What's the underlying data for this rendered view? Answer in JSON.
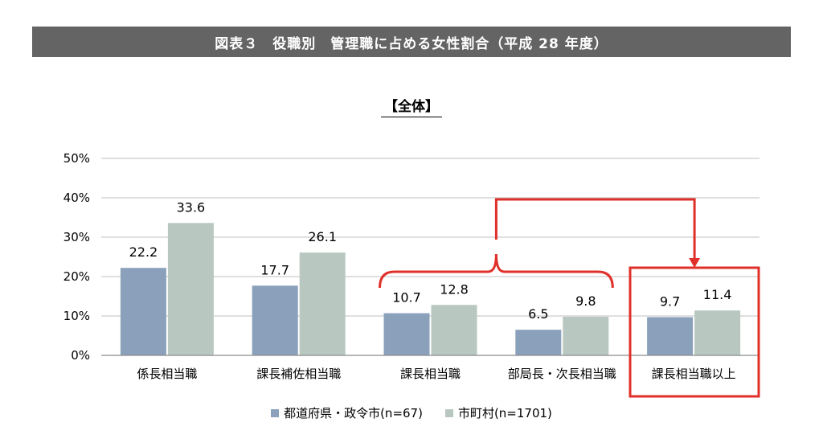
{
  "header": {
    "title": "図表３　役職別　管理職に占める女性割合（平成 28 年度）"
  },
  "subtitle": "【全体】",
  "colors": {
    "series1": "#8aa0bb",
    "series2": "#b8c8c0",
    "highlight": "#e0302a",
    "grid": "#bfbfbf"
  },
  "chart_data": {
    "type": "bar",
    "title": "",
    "categories": [
      "係長相当職",
      "課長補佐相当職",
      "課長相当職",
      "部局長・次長相当職",
      "課長相当職以上"
    ],
    "series": [
      {
        "name": "都道府県・政令市(n=67)",
        "values": [
          22.2,
          17.7,
          10.7,
          6.5,
          9.7
        ]
      },
      {
        "name": "市町村(n=1701)",
        "values": [
          33.6,
          26.1,
          12.8,
          9.8,
          11.4
        ]
      }
    ],
    "yticks": [
      "0%",
      "10%",
      "20%",
      "30%",
      "40%",
      "50%"
    ],
    "ylim": [
      0,
      50
    ],
    "grid": true,
    "legend": "bottom",
    "annotation": "bracket grouping 課長相当職 and 部局長・次長相当職 with arrow pointing to highlighted 課長相当職以上"
  }
}
